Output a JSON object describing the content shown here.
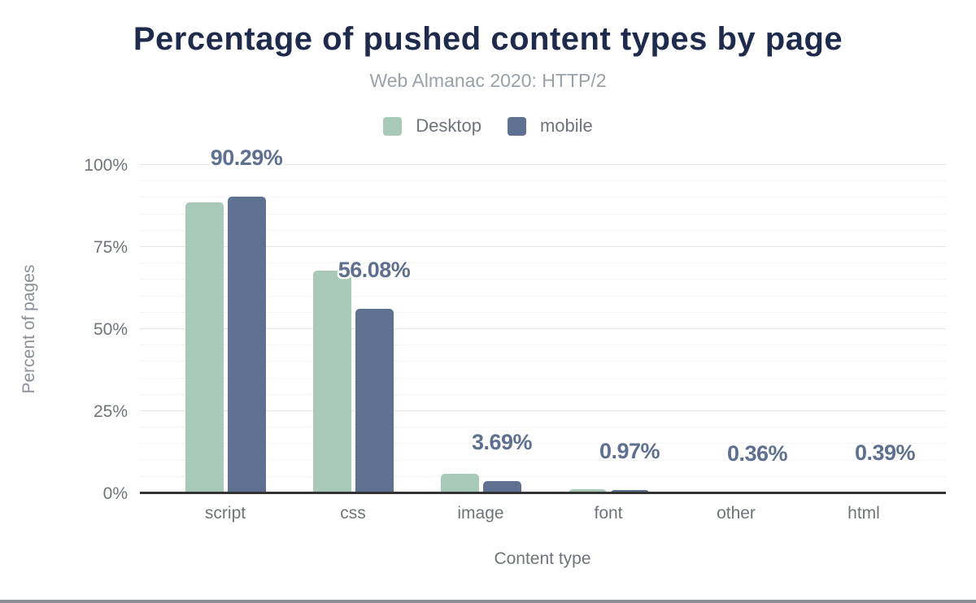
{
  "page": {
    "title": "Percentage of pushed content types by page",
    "subtitle": "Web Almanac 2020: HTTP/2"
  },
  "legend": {
    "items": [
      {
        "label": "Desktop",
        "color": "#a8c9b7"
      },
      {
        "label": "mobile",
        "color": "#5f7190"
      }
    ]
  },
  "axes": {
    "x_title": "Content type",
    "y_title": "Percent of pages",
    "y_ticks": [
      {
        "label": "0%",
        "value": 0
      },
      {
        "label": "25%",
        "value": 25
      },
      {
        "label": "50%",
        "value": 50
      },
      {
        "label": "75%",
        "value": 75
      },
      {
        "label": "100%",
        "value": 100
      }
    ]
  },
  "chart_data": {
    "type": "bar",
    "title": "Percentage of pushed content types by page",
    "subtitle": "Web Almanac 2020: HTTP/2",
    "categories": [
      "script",
      "css",
      "image",
      "font",
      "other",
      "html"
    ],
    "series": [
      {
        "name": "Desktop",
        "color": "#a8c9b7",
        "values": [
          88.5,
          67.9,
          6.0,
          1.2,
          0.6,
          0.6
        ]
      },
      {
        "name": "mobile",
        "color": "#5f7190",
        "values": [
          90.29,
          56.08,
          3.69,
          0.97,
          0.36,
          0.39
        ]
      }
    ],
    "data_labels": {
      "labeled_series": "mobile",
      "values": [
        "90.29%",
        "56.08%",
        "3.69%",
        "0.97%",
        "0.36%",
        "0.39%"
      ]
    },
    "xlabel": "Content type",
    "ylabel": "Percent of pages",
    "ylim": [
      0,
      100
    ],
    "grid": {
      "major_step": 25,
      "minor_step": 5
    },
    "legend_position": "top"
  },
  "colors": {
    "title": "#1e2b4d",
    "subtitle": "#9aa1a8",
    "axis_text": "#6f747c",
    "data_label": "#5e7090",
    "baseline": "#333333",
    "grid_major": "#e4e4e4",
    "grid_minor": "#f4f4f4",
    "bottom_bar": "#8a8e93"
  }
}
